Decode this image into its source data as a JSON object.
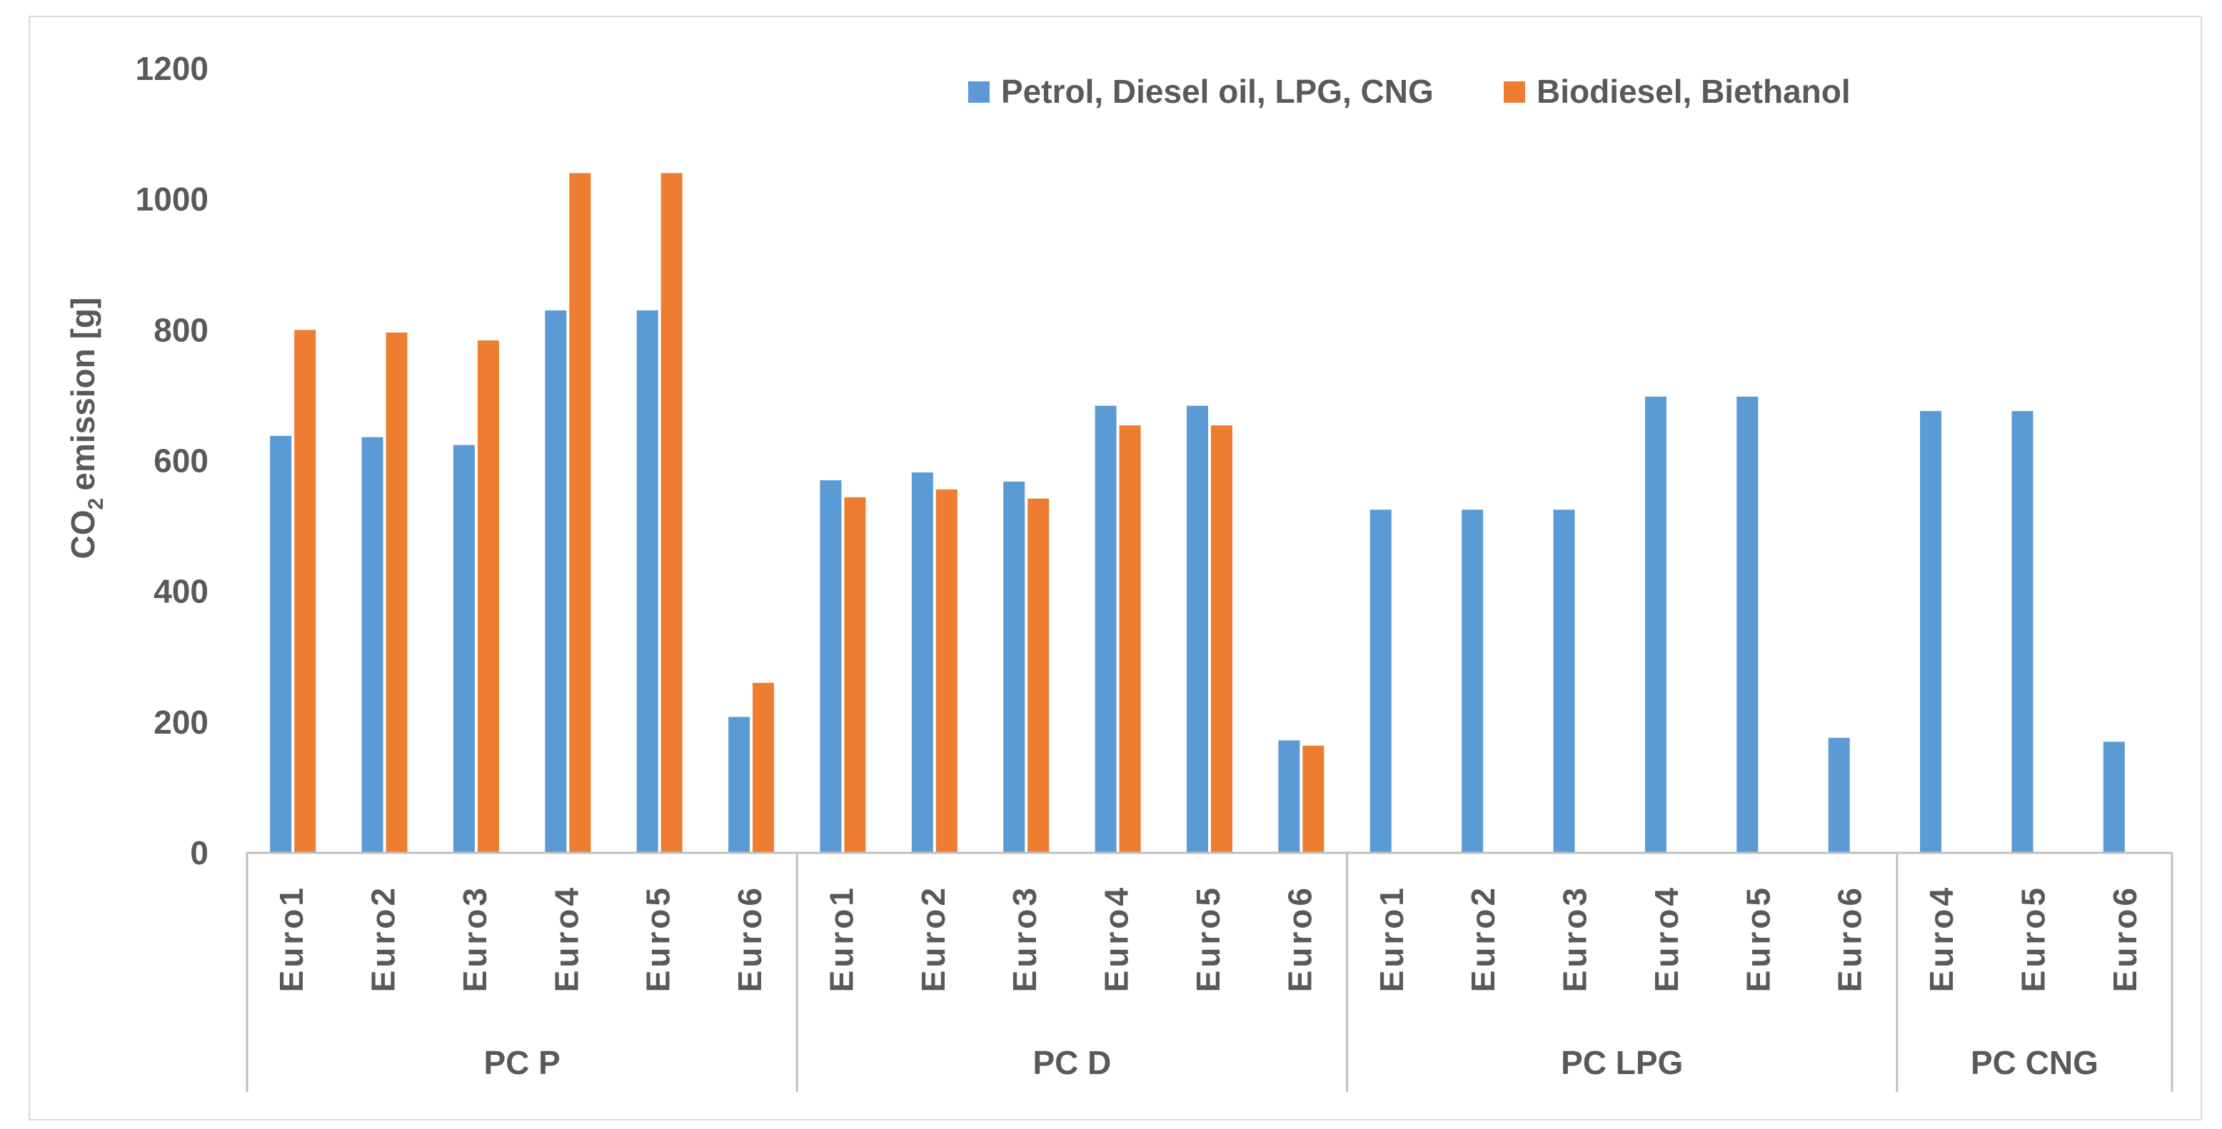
{
  "chart_data": {
    "type": "bar",
    "title": "",
    "ylabel": "CO2 emission [g]",
    "ylabel_parts": {
      "main": "CO",
      "subscript": "2",
      "rest": "emission [g]"
    },
    "xlabel": "",
    "ylim": [
      0,
      1200
    ],
    "yticks": [
      0,
      200,
      400,
      600,
      800,
      1000,
      1200
    ],
    "grid": false,
    "legend_position": "top-right",
    "groups": [
      {
        "label": "PC P",
        "categories": [
          "Euro1",
          "Euro2",
          "Euro3",
          "Euro4",
          "Euro5",
          "Euro6"
        ]
      },
      {
        "label": "PC D",
        "categories": [
          "Euro1",
          "Euro2",
          "Euro3",
          "Euro4",
          "Euro5",
          "Euro6"
        ]
      },
      {
        "label": "PC LPG",
        "categories": [
          "Euro1",
          "Euro2",
          "Euro3",
          "Euro4",
          "Euro5",
          "Euro6"
        ]
      },
      {
        "label": "PC CNG",
        "categories": [
          "Euro4",
          "Euro5",
          "Euro6"
        ]
      }
    ],
    "series": [
      {
        "name": "Petrol, Diesel oil, LPG, CNG",
        "color": "#5b9bd5",
        "values": [
          638,
          636,
          624,
          830,
          830,
          208,
          570,
          582,
          568,
          684,
          684,
          172,
          525,
          525,
          525,
          698,
          698,
          176,
          676,
          676,
          170
        ]
      },
      {
        "name": "Biodiesel, Biethanol",
        "color": "#ed7d31",
        "values": [
          800,
          796,
          784,
          1040,
          1040,
          260,
          544,
          556,
          542,
          654,
          654,
          164,
          null,
          null,
          null,
          null,
          null,
          null,
          null,
          null,
          null
        ]
      }
    ]
  }
}
